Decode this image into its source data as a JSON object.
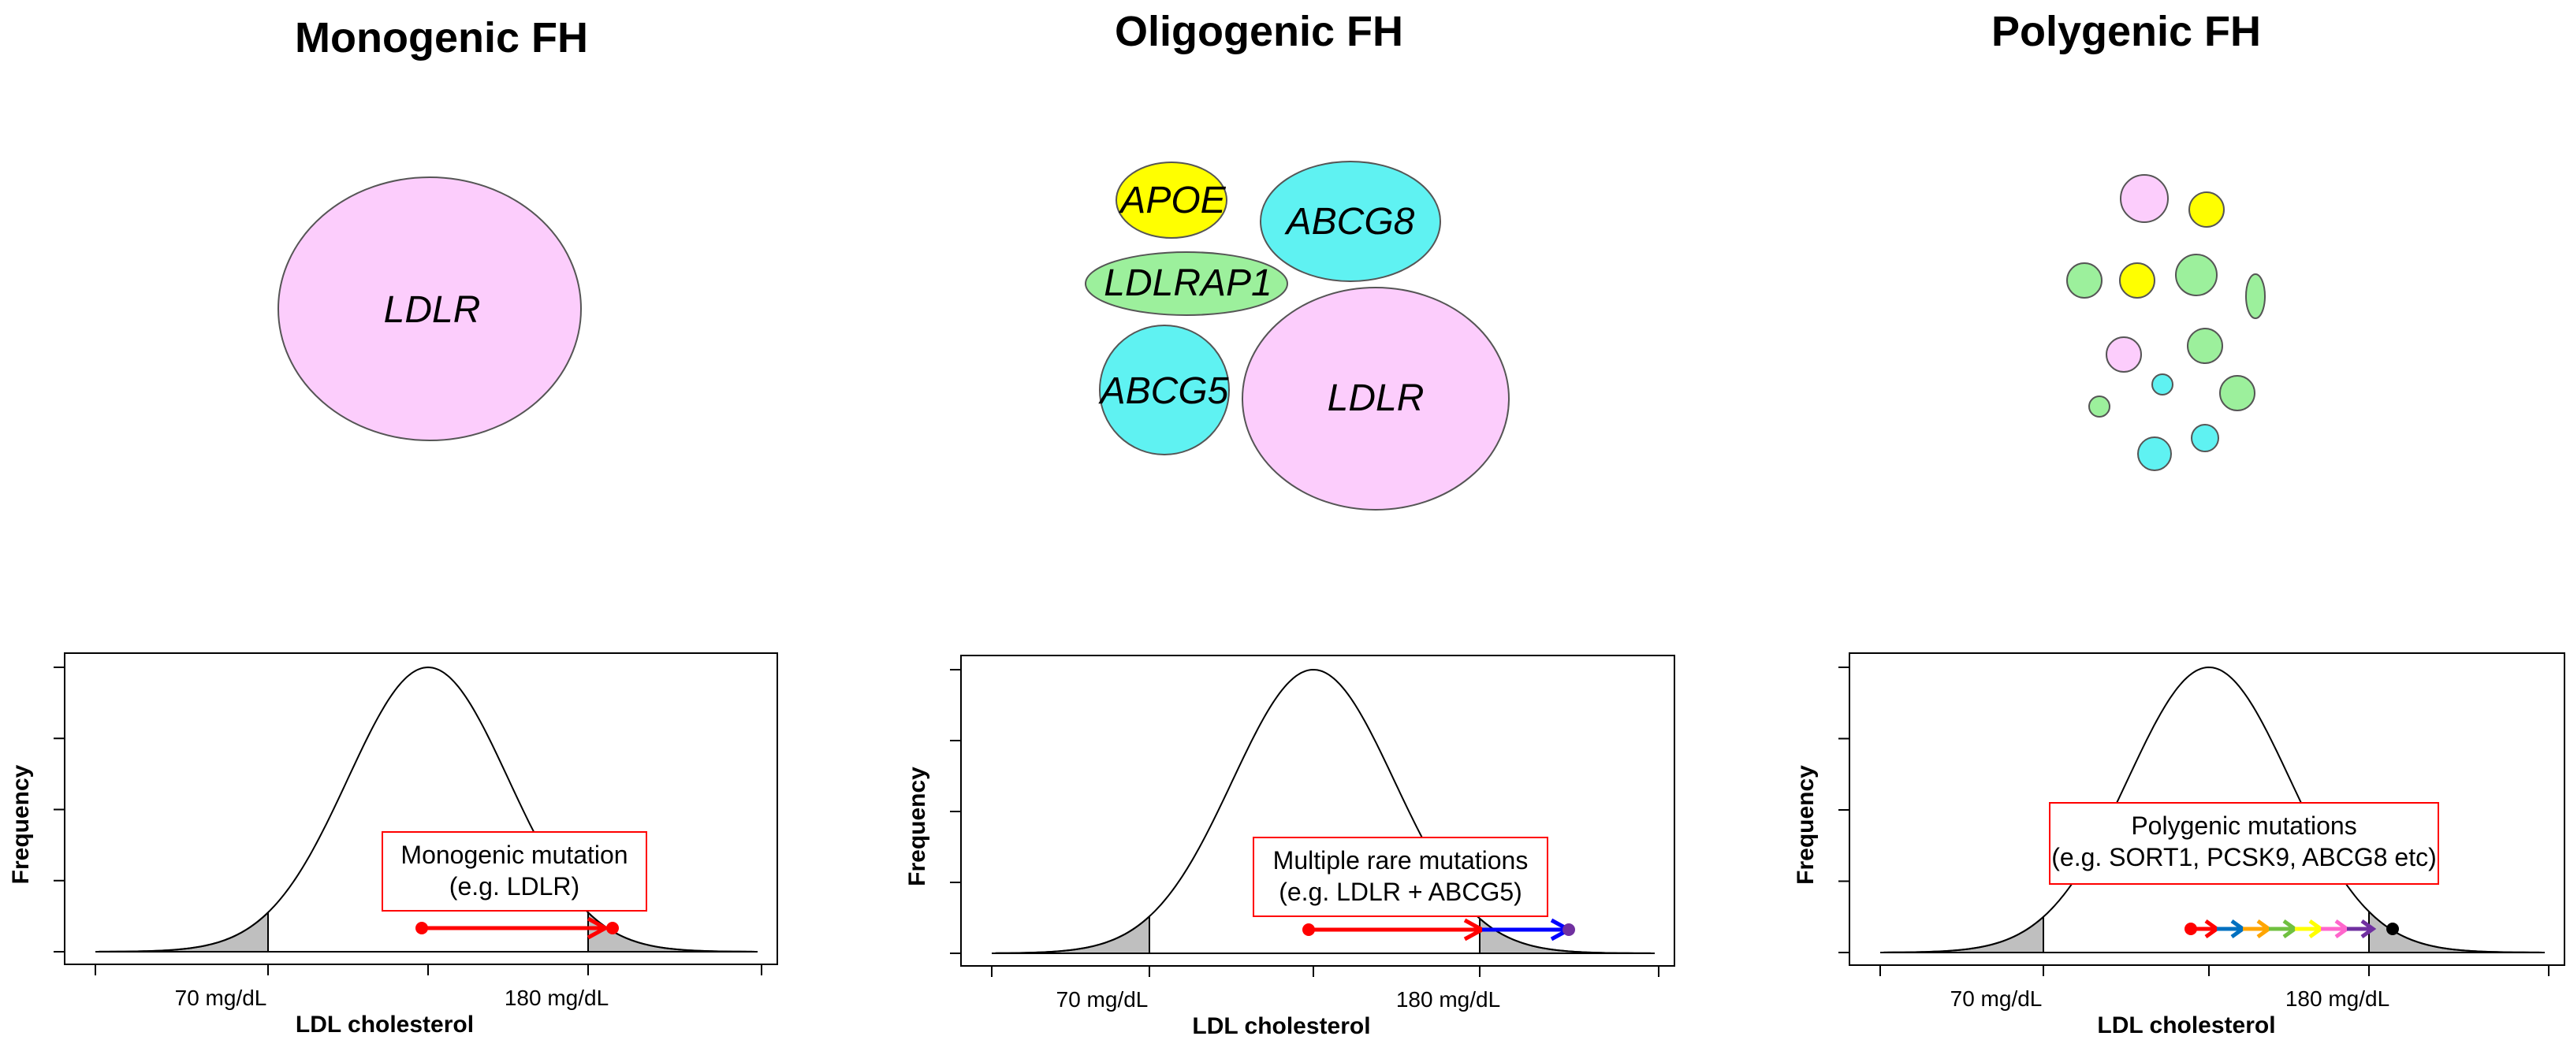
{
  "colors": {
    "pink": "#fccdfc",
    "yellow": "#ffff00",
    "cyan": "#5ff2f2",
    "green": "#9cf09c",
    "shade": "#bfbfbf",
    "box_border": "#ff0000",
    "red": "#ff0000",
    "blue": "#0000ff",
    "purple": "#7030a0",
    "black": "#000000"
  },
  "panels": [
    {
      "title": "Monogenic FH",
      "genes": [
        "LDLR"
      ],
      "plot": {
        "y_label": "Frequency",
        "x_label": "LDL cholesterol",
        "ticks": [
          "70 mg/dL",
          "180 mg/dL"
        ],
        "box_lines": [
          "Monogenic mutation",
          "(e.g. LDLR)"
        ],
        "arrow_colors": [
          "#ff0000"
        ],
        "end_dot": "#ff0000"
      }
    },
    {
      "title": "Oligogenic FH",
      "genes": [
        "APOE",
        "ABCG8",
        "LDLRAP1",
        "ABCG5",
        "LDLR"
      ],
      "plot": {
        "y_label": "Frequency",
        "x_label": "LDL cholesterol",
        "ticks": [
          "70 mg/dL",
          "180 mg/dL"
        ],
        "box_lines": [
          "Multiple rare mutations",
          "(e.g. LDLR + ABCG5)"
        ],
        "arrow_colors": [
          "#ff0000",
          "#0000ff"
        ],
        "end_dot": "#7030a0"
      }
    },
    {
      "title": "Polygenic FH",
      "genes": [],
      "plot": {
        "y_label": "Frequency",
        "x_label": "LDL cholesterol",
        "ticks": [
          "70 mg/dL",
          "180 mg/dL"
        ],
        "box_lines": [
          "Polygenic mutations",
          "(e.g. SORT1, PCSK9, ABCG8 etc)"
        ],
        "arrow_colors": [
          "#ff0000",
          "#0070c0",
          "#ffa500",
          "#70c040",
          "#ffff00",
          "#ff66cc",
          "#7030a0"
        ],
        "end_dot": "#000000"
      }
    }
  ],
  "polygenic_circles": [
    "pink",
    "yellow",
    "green",
    "yellow",
    "green",
    "green",
    "pink",
    "green",
    "cyan",
    "green",
    "green",
    "cyan",
    "cyan"
  ]
}
